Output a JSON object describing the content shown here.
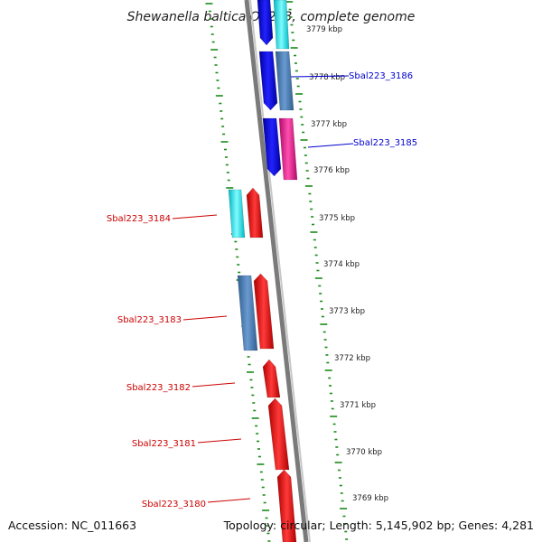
{
  "title": "Shewanella baltica OS223, complete genome",
  "footer": {
    "accession": "Accession: NC_011663",
    "summary": "Topology: circular; Length: 5,145,902 bp; Genes: 4,281"
  },
  "scale_ticks": [
    {
      "label": "3779 kbp",
      "kbp": 3779
    },
    {
      "label": "3778 kbp",
      "kbp": 3778
    },
    {
      "label": "3777 kbp",
      "kbp": 3777
    },
    {
      "label": "3776 kbp",
      "kbp": 3776
    },
    {
      "label": "3775 kbp",
      "kbp": 3775
    },
    {
      "label": "3774 kbp",
      "kbp": 3774
    },
    {
      "label": "3773 kbp",
      "kbp": 3773
    },
    {
      "label": "3772 kbp",
      "kbp": 3772
    },
    {
      "label": "3771 kbp",
      "kbp": 3771
    },
    {
      "label": "3770 kbp",
      "kbp": 3770
    },
    {
      "label": "3769 kbp",
      "kbp": 3769
    }
  ],
  "gene_labels": [
    {
      "text": "Sbal223_3186",
      "color": "#0000cc",
      "side": "right"
    },
    {
      "text": "Sbal223_3185",
      "color": "#0000cc",
      "side": "right"
    },
    {
      "text": "Sbal223_3184",
      "color": "#cc0000",
      "side": "left"
    },
    {
      "text": "Sbal223_3183",
      "color": "#cc0000",
      "side": "left"
    },
    {
      "text": "Sbal223_3182",
      "color": "#cc0000",
      "side": "left"
    },
    {
      "text": "Sbal223_3181",
      "color": "#cc0000",
      "side": "left"
    },
    {
      "text": "Sbal223_3180",
      "color": "#cc0000",
      "side": "left"
    }
  ],
  "colors": {
    "blue": "#1010e0",
    "steel": "#4a7fb5",
    "cyan": "#00e5ee",
    "magenta": "#ee1493",
    "red": "#ee1111",
    "backbone": "#888888",
    "gc_ticks": "#1a8a1a"
  }
}
